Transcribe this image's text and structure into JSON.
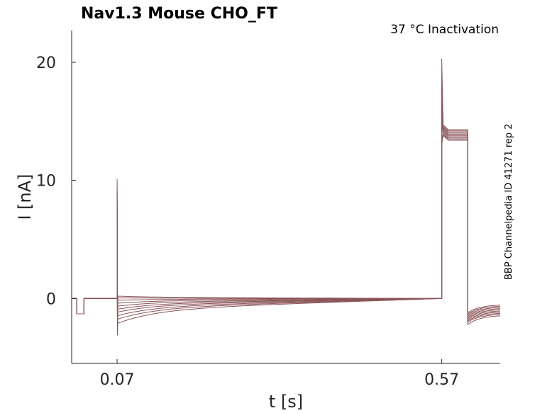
{
  "chart_data": {
    "type": "line",
    "title": "Nav1.3  Mouse  CHO_FT",
    "subtitle": "37 °C  Inactivation",
    "side_note": "BBP Channelpedia ID 41271 rep 2",
    "xlabel": "t [s]",
    "ylabel": "I [nA]",
    "xlim": [
      0.0,
      0.66
    ],
    "ylim": [
      -5.5,
      22.7
    ],
    "x_ticks": [
      0.07,
      0.57
    ],
    "x_tick_labels": [
      "0.07",
      "0.57"
    ],
    "y_ticks": [
      0,
      10,
      20
    ],
    "y_tick_labels": [
      "0",
      "10",
      "20"
    ],
    "grid": false,
    "legend": "none",
    "trace_color": "#8b5558",
    "protocol": {
      "pre_pulse_dip": {
        "t_start": 0.008,
        "t_end": 0.019,
        "value": -1.3
      },
      "conditioning_start": 0.07,
      "test_pulse_start": 0.57,
      "test_pulse_end": 0.61,
      "end": 0.66
    },
    "series": [
      {
        "cond_onset": 0.2,
        "cond_spike_low": -0.7,
        "cond_spike_high": 10.1,
        "test_peak": 20.3,
        "test_plateau": 14.3,
        "tail_start": -1.2,
        "tail_end": -0.5
      },
      {
        "cond_onset": 0.05,
        "cond_spike_low": -0.9,
        "cond_spike_high": 9.5,
        "test_peak": 19.0,
        "test_plateau": 14.2,
        "tail_start": -1.3,
        "tail_end": -0.6
      },
      {
        "cond_onset": -0.15,
        "cond_spike_low": -1.1,
        "cond_spike_high": 9.0,
        "test_peak": 18.0,
        "test_plateau": 14.1,
        "tail_start": -1.4,
        "tail_end": -0.7
      },
      {
        "cond_onset": -0.4,
        "cond_spike_low": -1.3,
        "cond_spike_high": 8.6,
        "test_peak": 17.0,
        "test_plateau": 14.0,
        "tail_start": -1.5,
        "tail_end": -0.8
      },
      {
        "cond_onset": -0.65,
        "cond_spike_low": -1.5,
        "cond_spike_high": 8.2,
        "test_peak": 16.0,
        "test_plateau": 13.9,
        "tail_start": -1.6,
        "tail_end": -0.9
      },
      {
        "cond_onset": -0.9,
        "cond_spike_low": -1.7,
        "cond_spike_high": 7.8,
        "test_peak": 15.0,
        "test_plateau": 13.8,
        "tail_start": -1.7,
        "tail_end": -1.0
      },
      {
        "cond_onset": -1.15,
        "cond_spike_low": -1.9,
        "cond_spike_high": 7.4,
        "test_peak": 14.5,
        "test_plateau": 13.7,
        "tail_start": -1.8,
        "tail_end": -1.1
      },
      {
        "cond_onset": -1.45,
        "cond_spike_low": -2.2,
        "cond_spike_high": 7.0,
        "test_peak": 14.0,
        "test_plateau": 13.6,
        "tail_start": -1.9,
        "tail_end": -1.2
      },
      {
        "cond_onset": -1.75,
        "cond_spike_low": -2.6,
        "cond_spike_high": 6.6,
        "test_peak": 13.5,
        "test_plateau": 13.5,
        "tail_start": -2.0,
        "tail_end": -1.3
      },
      {
        "cond_onset": -2.1,
        "cond_spike_low": -3.1,
        "cond_spike_high": 6.2,
        "test_peak": 13.0,
        "test_plateau": 13.4,
        "tail_start": -2.2,
        "tail_end": -1.4
      }
    ]
  }
}
